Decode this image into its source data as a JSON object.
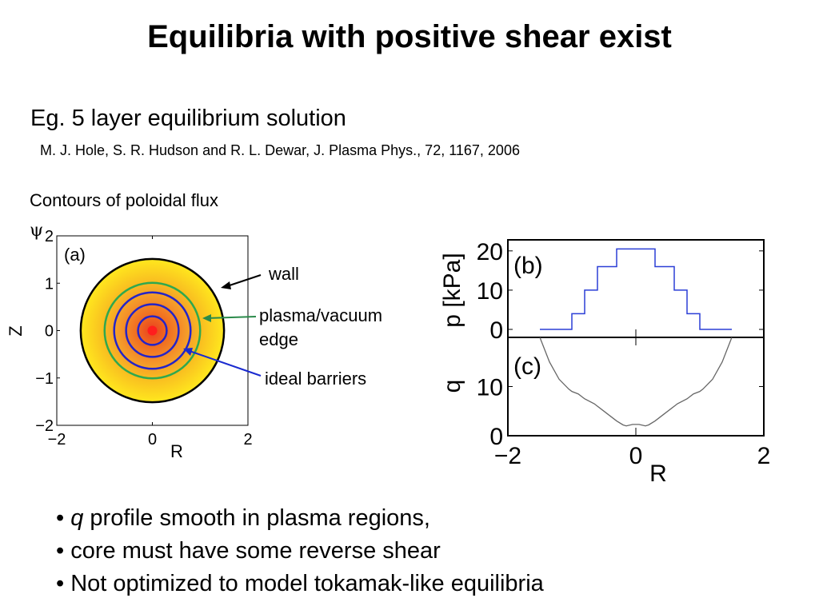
{
  "title": "Equilibria with positive shear exist",
  "subtitle": "Eg. 5 layer equilibrium solution",
  "citation": "M. J. Hole, S. R. Hudson and R. L. Dewar, J. Plasma Phys., 72, 1167, 2006",
  "contour_caption": "Contours of poloidal flux",
  "psi_symbol": "ψ",
  "annotations": {
    "wall": "wall",
    "edge_line1": "plasma/vacuum",
    "edge_line2": "edge",
    "barriers": "ideal barriers"
  },
  "colors": {
    "wall": "#000000",
    "edge": "#2fa84f",
    "barriers": "#2424c8",
    "pressure_line": "#2b3fd6",
    "q_line": "#666666"
  },
  "bullets": [
    {
      "italic": "q",
      "text": " profile smooth in plasma regions,"
    },
    {
      "italic": "",
      "text": "core must have some reverse shear"
    },
    {
      "italic": "",
      "text": "Not optimized to model tokamak-like equilibria"
    }
  ],
  "chart_data": [
    {
      "type": "heatmap",
      "panel_label": "(a)",
      "xlabel": "R",
      "ylabel": "Z",
      "xlim": [
        -2,
        2
      ],
      "ylim": [
        -2,
        2
      ],
      "xticks": [
        "−2",
        "0",
        "2"
      ],
      "yticks": [
        "2",
        "1",
        "0",
        "−1",
        "−2"
      ],
      "wall_radius": 1.5,
      "edge_radius": 1.0,
      "barrier_radii": [
        0.8,
        0.55,
        0.3
      ],
      "core_radius": 0.1
    },
    {
      "type": "line",
      "panel_label": "(b)",
      "ylabel": "p [kPa]",
      "xlim": [
        -2,
        2
      ],
      "ylim": [
        0,
        22
      ],
      "yticks": [
        "20",
        "10",
        "0"
      ],
      "x": [
        -1.5,
        -1.0,
        -1.0,
        -0.8,
        -0.8,
        -0.6,
        -0.6,
        -0.3,
        -0.3,
        0.3,
        0.3,
        0.6,
        0.6,
        0.8,
        0.8,
        1.0,
        1.0,
        1.5
      ],
      "y": [
        0,
        0,
        4,
        4,
        10,
        10,
        16,
        16,
        20.5,
        20.5,
        16,
        16,
        10,
        10,
        4,
        4,
        0,
        0
      ]
    },
    {
      "type": "line",
      "panel_label": "(c)",
      "xlabel": "R",
      "ylabel": "q",
      "xlim": [
        -2,
        2
      ],
      "ylim": [
        0,
        20
      ],
      "yticks": [
        "10",
        "0"
      ],
      "xticks": [
        "−2",
        "0",
        "2"
      ],
      "x": [
        -1.5,
        -1.35,
        -1.2,
        -1.05,
        -1.0,
        -0.9,
        -0.8,
        -0.65,
        -0.6,
        -0.45,
        -0.3,
        -0.2,
        -0.15,
        -0.05,
        0.05,
        0.15,
        0.2,
        0.3,
        0.45,
        0.6,
        0.65,
        0.8,
        0.9,
        1.0,
        1.05,
        1.2,
        1.35,
        1.5
      ],
      "y": [
        20,
        15,
        11.5,
        9.5,
        9,
        8.5,
        7.5,
        6.5,
        6,
        4.5,
        3,
        2.2,
        2,
        2.3,
        2.3,
        2,
        2.2,
        3,
        4.5,
        6,
        6.5,
        7.5,
        8.5,
        9,
        9.5,
        11.5,
        15,
        20
      ]
    }
  ]
}
